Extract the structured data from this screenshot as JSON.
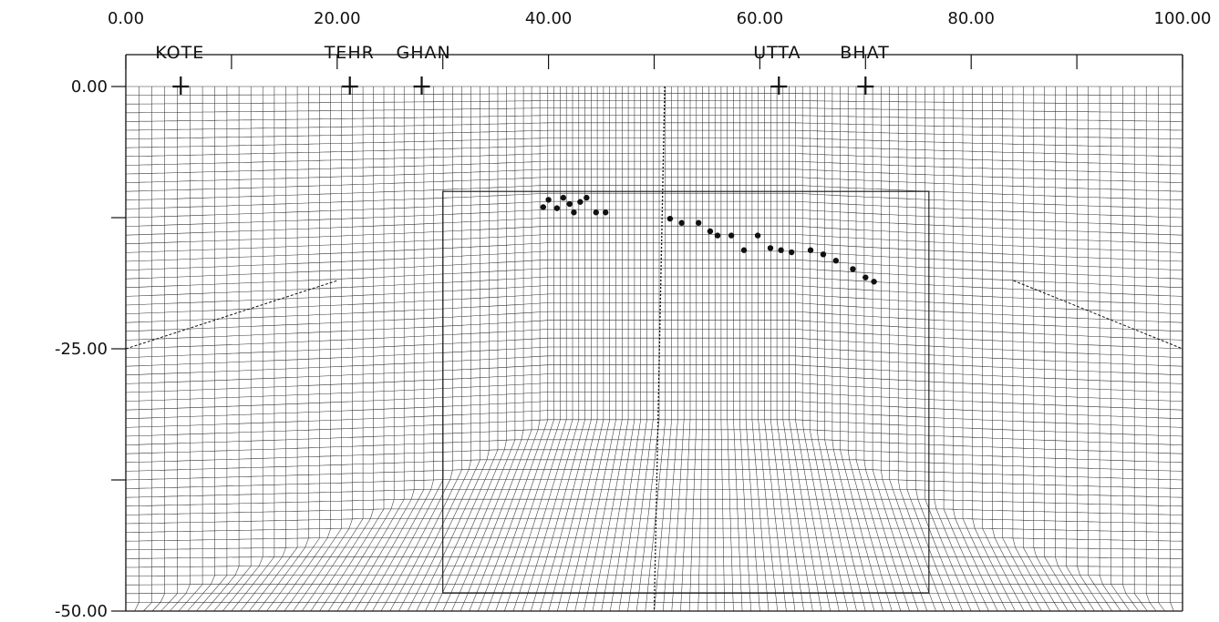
{
  "figure": {
    "x_tick_labels": [
      "0.00",
      "20.00",
      "40.00",
      "60.00",
      "80.00",
      "100.00"
    ],
    "y_tick_labels": [
      "0.00",
      "-25.00",
      "-50.00"
    ],
    "x_ticks": [
      0,
      10,
      20,
      30,
      40,
      50,
      60,
      70,
      80,
      90,
      100
    ],
    "y_ticks": [
      0,
      -12.5,
      -25,
      -37.5,
      -50
    ],
    "x_range": [
      0,
      100
    ],
    "y_range": [
      -50,
      0
    ],
    "stations": [
      {
        "name": "KOTE",
        "x": 5.2
      },
      {
        "name": "TEHR",
        "x": 21.2
      },
      {
        "name": "GHAN",
        "x": 28.0
      },
      {
        "name": "UTTA",
        "x": 61.8
      },
      {
        "name": "BHAT",
        "x": 70.0
      }
    ],
    "events": [
      {
        "x": 39.5,
        "y": -11.5
      },
      {
        "x": 40.0,
        "y": -10.8
      },
      {
        "x": 40.8,
        "y": -11.6
      },
      {
        "x": 41.4,
        "y": -10.6
      },
      {
        "x": 42.0,
        "y": -11.2
      },
      {
        "x": 42.4,
        "y": -12.0
      },
      {
        "x": 43.0,
        "y": -11.0
      },
      {
        "x": 43.6,
        "y": -10.6
      },
      {
        "x": 44.5,
        "y": -12.0
      },
      {
        "x": 45.4,
        "y": -12.0
      },
      {
        "x": 51.5,
        "y": -12.6
      },
      {
        "x": 52.6,
        "y": -13.0
      },
      {
        "x": 54.2,
        "y": -13.0
      },
      {
        "x": 55.3,
        "y": -13.8
      },
      {
        "x": 56.0,
        "y": -14.2
      },
      {
        "x": 57.3,
        "y": -14.2
      },
      {
        "x": 58.5,
        "y": -15.6
      },
      {
        "x": 59.8,
        "y": -14.2
      },
      {
        "x": 61.0,
        "y": -15.4
      },
      {
        "x": 62.0,
        "y": -15.6
      },
      {
        "x": 63.0,
        "y": -15.8
      },
      {
        "x": 64.8,
        "y": -15.6
      },
      {
        "x": 66.0,
        "y": -16.0
      },
      {
        "x": 67.2,
        "y": -16.6
      },
      {
        "x": 68.8,
        "y": -17.4
      },
      {
        "x": 70.0,
        "y": -18.2
      },
      {
        "x": 70.8,
        "y": -18.6
      }
    ],
    "colors": {
      "ink": "#111111",
      "background": "#ffffff"
    }
  }
}
